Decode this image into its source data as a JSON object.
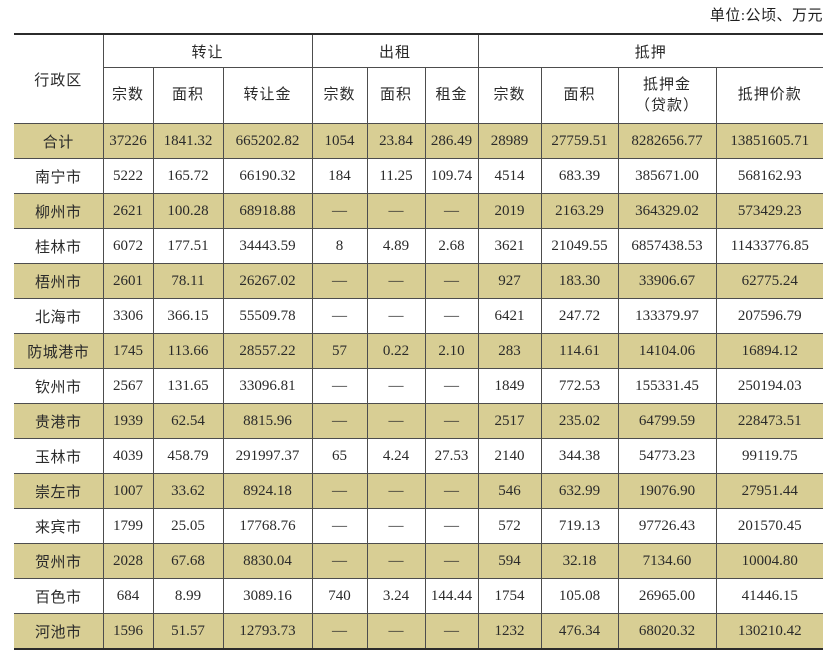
{
  "unit_label": "单位:公顷、万元",
  "colors": {
    "row_shade": "#d8ce94",
    "grid_line": "#4d4d4d",
    "outer_rule": "#2b2b2b",
    "text": "#2a2a2a"
  },
  "table": {
    "region_header": "行政区",
    "groups": [
      {
        "label": "转让",
        "span": 3
      },
      {
        "label": "出租",
        "span": 3
      },
      {
        "label": "抵押",
        "span": 4
      }
    ],
    "subheaders": [
      "宗数",
      "面积",
      "转让金",
      "宗数",
      "面积",
      "租金",
      "宗数",
      "面积",
      "抵押金\n（贷款）",
      "抵押价款"
    ],
    "rows": [
      {
        "region": "合计",
        "values": [
          "37226",
          "1841.32",
          "665202.82",
          "1054",
          "23.84",
          "286.49",
          "28989",
          "27759.51",
          "8282656.77",
          "13851605.71"
        ]
      },
      {
        "region": "南宁市",
        "values": [
          "5222",
          "165.72",
          "66190.32",
          "184",
          "11.25",
          "109.74",
          "4514",
          "683.39",
          "385671.00",
          "568162.93"
        ]
      },
      {
        "region": "柳州市",
        "values": [
          "2621",
          "100.28",
          "68918.88",
          "—",
          "—",
          "—",
          "2019",
          "2163.29",
          "364329.02",
          "573429.23"
        ]
      },
      {
        "region": "桂林市",
        "values": [
          "6072",
          "177.51",
          "34443.59",
          "8",
          "4.89",
          "2.68",
          "3621",
          "21049.55",
          "6857438.53",
          "11433776.85"
        ]
      },
      {
        "region": "梧州市",
        "values": [
          "2601",
          "78.11",
          "26267.02",
          "—",
          "—",
          "—",
          "927",
          "183.30",
          "33906.67",
          "62775.24"
        ]
      },
      {
        "region": "北海市",
        "values": [
          "3306",
          "366.15",
          "55509.78",
          "—",
          "—",
          "—",
          "6421",
          "247.72",
          "133379.97",
          "207596.79"
        ]
      },
      {
        "region": "防城港市",
        "values": [
          "1745",
          "113.66",
          "28557.22",
          "57",
          "0.22",
          "2.10",
          "283",
          "114.61",
          "14104.06",
          "16894.12"
        ]
      },
      {
        "region": "钦州市",
        "values": [
          "2567",
          "131.65",
          "33096.81",
          "—",
          "—",
          "—",
          "1849",
          "772.53",
          "155331.45",
          "250194.03"
        ]
      },
      {
        "region": "贵港市",
        "values": [
          "1939",
          "62.54",
          "8815.96",
          "—",
          "—",
          "—",
          "2517",
          "235.02",
          "64799.59",
          "228473.51"
        ]
      },
      {
        "region": "玉林市",
        "values": [
          "4039",
          "458.79",
          "291997.37",
          "65",
          "4.24",
          "27.53",
          "2140",
          "344.38",
          "54773.23",
          "99119.75"
        ]
      },
      {
        "region": "崇左市",
        "values": [
          "1007",
          "33.62",
          "8924.18",
          "—",
          "—",
          "—",
          "546",
          "632.99",
          "19076.90",
          "27951.44"
        ]
      },
      {
        "region": "来宾市",
        "values": [
          "1799",
          "25.05",
          "17768.76",
          "—",
          "—",
          "—",
          "572",
          "719.13",
          "97726.43",
          "201570.45"
        ]
      },
      {
        "region": "贺州市",
        "values": [
          "2028",
          "67.68",
          "8830.04",
          "—",
          "—",
          "—",
          "594",
          "32.18",
          "7134.60",
          "10004.80"
        ]
      },
      {
        "region": "百色市",
        "values": [
          "684",
          "8.99",
          "3089.16",
          "740",
          "3.24",
          "144.44",
          "1754",
          "105.08",
          "26965.00",
          "41446.15"
        ]
      },
      {
        "region": "河池市",
        "values": [
          "1596",
          "51.57",
          "12793.73",
          "—",
          "—",
          "—",
          "1232",
          "476.34",
          "68020.32",
          "130210.42"
        ]
      }
    ]
  }
}
